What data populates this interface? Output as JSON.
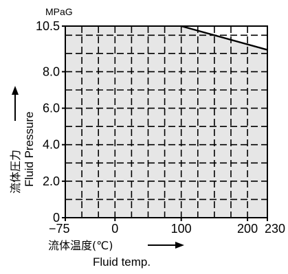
{
  "chart_data": {
    "type": "area",
    "title": "",
    "unit_label": "MPaG",
    "xlabel_jp": "流体温度(℃)",
    "xlabel_en": "Fluid temp.",
    "ylabel_jp": "流体圧力",
    "ylabel_en": "Fluid Pressure",
    "xlim": [
      -75,
      230
    ],
    "ylim": [
      0,
      10.5
    ],
    "x_ticks": [
      {
        "value": -75,
        "label": "−75"
      },
      {
        "value": 0,
        "label": "0"
      },
      {
        "value": 100,
        "label": "100"
      },
      {
        "value": 200,
        "label": "200"
      },
      {
        "value": 230,
        "label": "230"
      }
    ],
    "y_ticks": [
      {
        "value": 0,
        "label": "0"
      },
      {
        "value": 2.0,
        "label": "2.0"
      },
      {
        "value": 4.0,
        "label": "4.0"
      },
      {
        "value": 6.0,
        "label": "6.0"
      },
      {
        "value": 8.0,
        "label": "8.0"
      },
      {
        "value": 10.5,
        "label": "10.5"
      }
    ],
    "x_grid": [
      -50,
      -25,
      0,
      25,
      50,
      75,
      100,
      125,
      150,
      175,
      200
    ],
    "y_grid": [
      1,
      2,
      3,
      4,
      5,
      6,
      7,
      8,
      9,
      10
    ],
    "grid": true,
    "series": [
      {
        "points": [
          [
            -75,
            0
          ],
          [
            -75,
            10.5
          ],
          [
            100,
            10.5
          ],
          [
            230,
            9.2
          ],
          [
            230,
            0
          ]
        ]
      }
    ],
    "fill_color": "#e6e6e6"
  }
}
